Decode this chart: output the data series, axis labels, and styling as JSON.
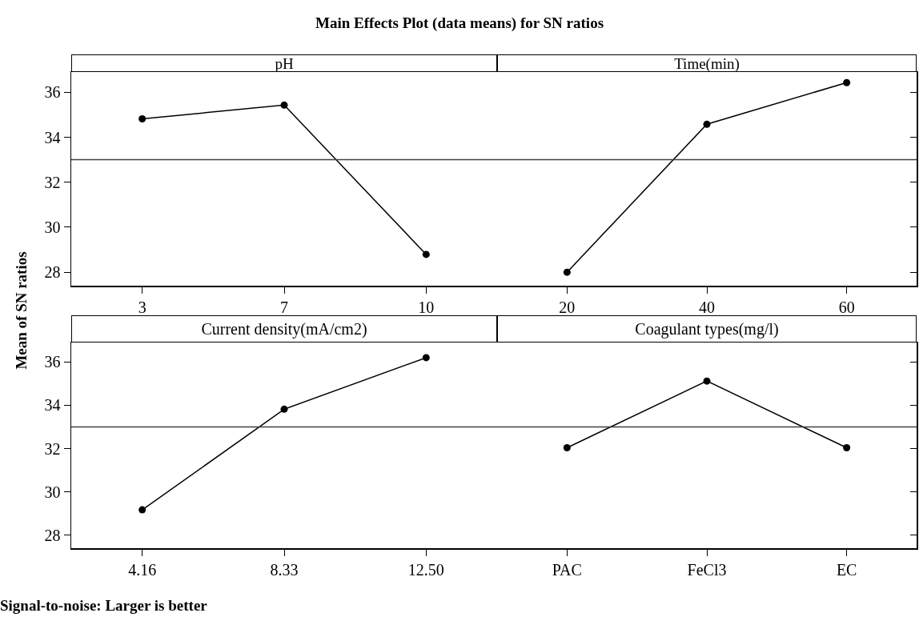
{
  "chart_data": [
    {
      "type": "line",
      "title": "pH",
      "ylabel": "Mean of SN ratios",
      "annotations": [
        "Main Effects Plot (data means) for SN ratios",
        "Signal-to-noise: Larger is better"
      ],
      "categories": [
        "3",
        "7",
        "10"
      ],
      "series": [
        {
          "color": "#000000",
          "values": [
            34.82,
            35.43,
            28.79
          ]
        }
      ],
      "ylim": [
        27.4,
        36.9
      ],
      "yticks": [
        28,
        30,
        32,
        34,
        36
      ],
      "ref_lines": [
        {
          "axis": "y",
          "value": 33,
          "color": "#404040"
        }
      ],
      "marker": "circle",
      "line_style": "solid"
    },
    {
      "type": "line",
      "title": "Time(min)",
      "categories": [
        "20",
        "40",
        "60"
      ],
      "series": [
        {
          "color": "#000000",
          "values": [
            28.0,
            34.58,
            36.43
          ]
        }
      ],
      "ylim": [
        27.4,
        36.9
      ],
      "yticks": [
        28,
        30,
        32,
        34,
        36
      ],
      "tick_labels": "x",
      "ref_lines": [
        {
          "axis": "y",
          "value": 33,
          "color": "#404040"
        }
      ],
      "marker": "circle",
      "line_style": "solid"
    },
    {
      "type": "line",
      "title": "Current density(mA/cm2)",
      "categories": [
        "4.16",
        "8.33",
        "12.50"
      ],
      "series": [
        {
          "color": "#000000",
          "values": [
            29.17,
            33.82,
            36.2
          ]
        }
      ],
      "ylim": [
        27.4,
        36.9
      ],
      "yticks": [
        28,
        30,
        32,
        34,
        36
      ],
      "ref_lines": [
        {
          "axis": "y",
          "value": 33,
          "color": "#404040"
        }
      ],
      "marker": "circle",
      "line_style": "solid"
    },
    {
      "type": "line",
      "title": "Coagulant types(mg/l)",
      "categories": [
        "PAC",
        "FeCl3",
        "EC"
      ],
      "series": [
        {
          "color": "#000000",
          "values": [
            32.04,
            35.12,
            32.04
          ]
        }
      ],
      "ylim": [
        27.4,
        36.9
      ],
      "yticks": [
        28,
        30,
        32,
        34,
        36
      ],
      "tick_labels": "x",
      "ref_lines": [
        {
          "axis": "y",
          "value": 33,
          "color": "#404040"
        }
      ],
      "marker": "circle",
      "line_style": "solid"
    }
  ]
}
